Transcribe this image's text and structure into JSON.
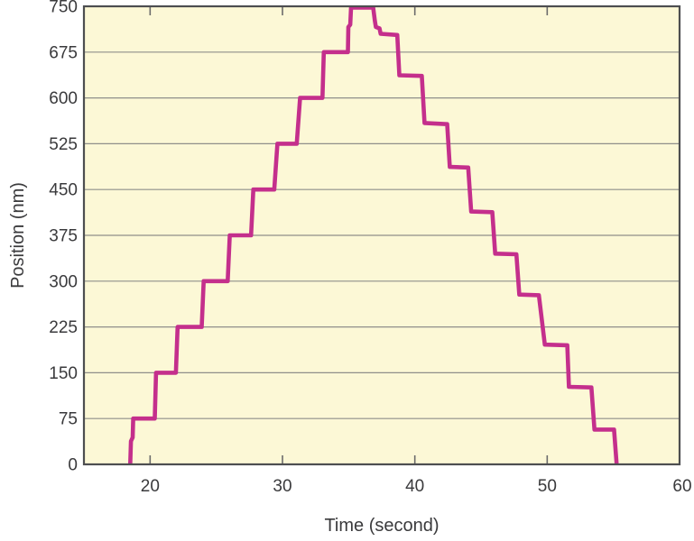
{
  "figure": {
    "background": "#ffffff",
    "plot_background": "#FCF8D6",
    "line_color": "#C42F8C",
    "grid_color": "#8F8F8A",
    "frame_color": "#4D4E50",
    "tick_color": "#6B6B6B",
    "text_color": "#3A3A3C"
  },
  "chart_data": {
    "type": "line",
    "line_style": "step-staircase",
    "title": "",
    "xlabel": "Time (second)",
    "ylabel": "Position (nm)",
    "xlim": [
      15,
      60
    ],
    "ylim": [
      0,
      750
    ],
    "x_ticks": [
      20,
      30,
      40,
      50,
      60
    ],
    "y_ticks": [
      0,
      75,
      150,
      225,
      300,
      375,
      450,
      525,
      600,
      675,
      750
    ],
    "grid": "horizontal-only",
    "legend": "none",
    "series": [
      {
        "name": "position-trace",
        "points": [
          [
            18.5,
            0
          ],
          [
            18.55,
            38
          ],
          [
            18.68,
            44
          ],
          [
            18.72,
            75
          ],
          [
            20.35,
            75
          ],
          [
            20.45,
            150
          ],
          [
            21.95,
            150
          ],
          [
            22.08,
            225
          ],
          [
            23.9,
            225
          ],
          [
            24.05,
            300
          ],
          [
            25.86,
            300
          ],
          [
            26.02,
            375
          ],
          [
            27.63,
            375
          ],
          [
            27.8,
            450
          ],
          [
            29.38,
            450
          ],
          [
            29.62,
            525
          ],
          [
            31.08,
            525
          ],
          [
            31.33,
            600
          ],
          [
            33.02,
            600
          ],
          [
            33.12,
            675
          ],
          [
            34.94,
            675
          ],
          [
            34.98,
            716
          ],
          [
            35.12,
            720
          ],
          [
            35.18,
            748
          ],
          [
            36.85,
            748
          ],
          [
            36.98,
            726
          ],
          [
            37.06,
            716
          ],
          [
            37.33,
            714
          ],
          [
            37.42,
            705
          ],
          [
            38.67,
            703
          ],
          [
            38.83,
            637
          ],
          [
            40.53,
            636
          ],
          [
            40.73,
            559
          ],
          [
            42.44,
            557
          ],
          [
            42.64,
            487
          ],
          [
            44.03,
            486
          ],
          [
            44.26,
            414
          ],
          [
            45.85,
            413
          ],
          [
            46.07,
            345
          ],
          [
            47.67,
            344
          ],
          [
            47.89,
            278
          ],
          [
            49.37,
            277
          ],
          [
            49.82,
            196
          ],
          [
            51.52,
            195
          ],
          [
            51.64,
            127
          ],
          [
            53.34,
            126
          ],
          [
            53.57,
            57
          ],
          [
            55.05,
            57
          ],
          [
            55.25,
            0
          ]
        ]
      }
    ]
  }
}
